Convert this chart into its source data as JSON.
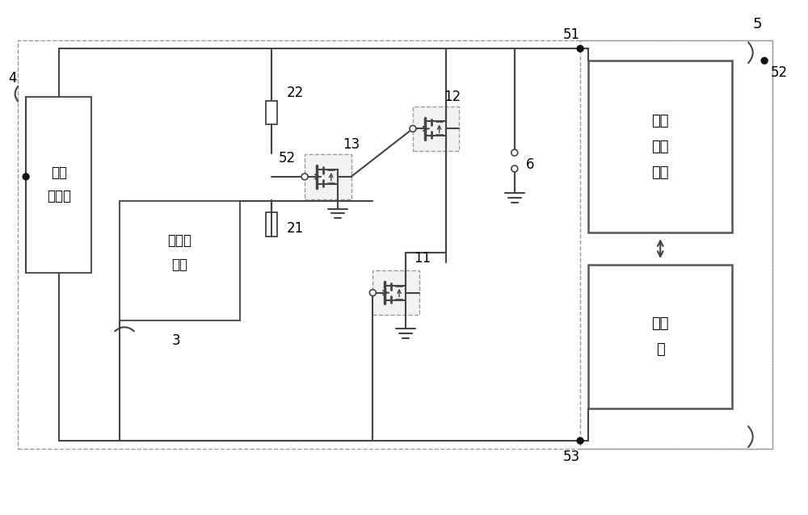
{
  "bg_color": "#ffffff",
  "line_color": "#444444",
  "box_border_color": "#555555",
  "dashed_color": "#999999",
  "dot_color": "#111111",
  "figsize": [
    10.0,
    6.38
  ],
  "dpi": 100,
  "labels": {
    "charger": "充电\n连接器",
    "temp_sensor": "温度传\n感器",
    "pwr_mgmt": "电源\n管理\n芯片",
    "processor": "处理\n器"
  },
  "numbers": {
    "n3": "3",
    "n4": "4",
    "n5": "5",
    "n6": "6",
    "n11": "11",
    "n12": "12",
    "n13": "13",
    "n21": "21",
    "n22": "22",
    "n51": "51",
    "n52a": "52",
    "n52b": "52",
    "n53": "53"
  },
  "font_size_label": 11,
  "font_size_number": 11
}
